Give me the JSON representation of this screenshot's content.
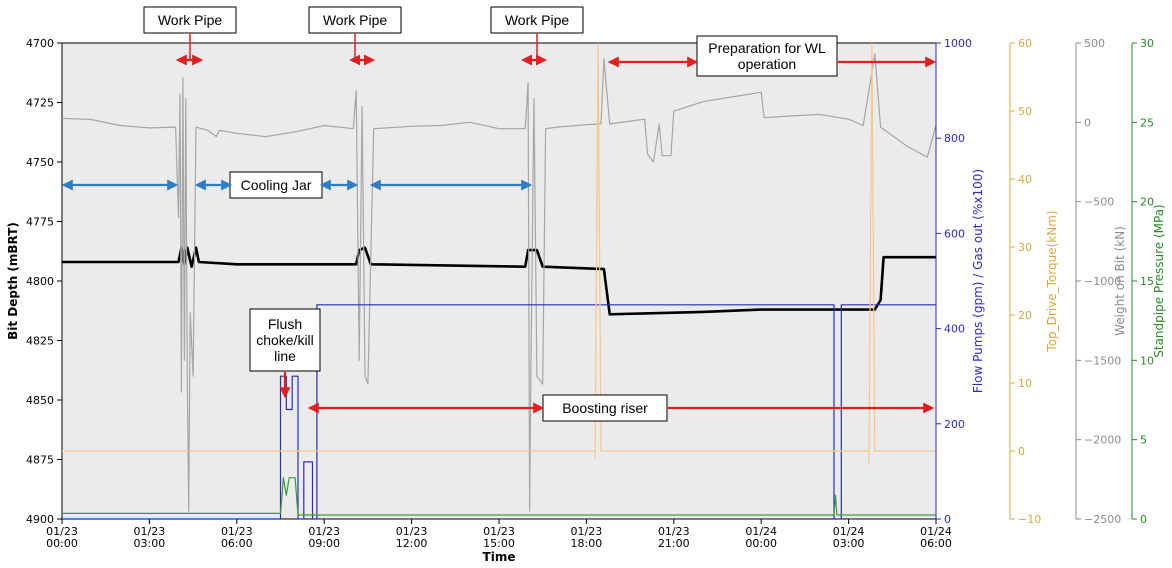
{
  "chart_data": {
    "type": "line",
    "xlabel": "Time",
    "x_range": [
      "01/23 00:00",
      "01/24 06:00"
    ],
    "x_ticks": [
      {
        "date": "01/23",
        "time": "00:00",
        "h": 0
      },
      {
        "date": "01/23",
        "time": "03:00",
        "h": 3
      },
      {
        "date": "01/23",
        "time": "06:00",
        "h": 6
      },
      {
        "date": "01/23",
        "time": "09:00",
        "h": 9
      },
      {
        "date": "01/23",
        "time": "12:00",
        "h": 12
      },
      {
        "date": "01/23",
        "time": "15:00",
        "h": 15
      },
      {
        "date": "01/23",
        "time": "18:00",
        "h": 18
      },
      {
        "date": "01/23",
        "time": "21:00",
        "h": 21
      },
      {
        "date": "01/24",
        "time": "00:00",
        "h": 24
      },
      {
        "date": "01/24",
        "time": "03:00",
        "h": 27
      },
      {
        "date": "01/24",
        "time": "06:00",
        "h": 30
      }
    ],
    "axes": [
      {
        "id": "depth",
        "label": "Bit Depth (mBRT)",
        "range": [
          4900,
          4700
        ],
        "ticks": [
          4700,
          4725,
          4750,
          4775,
          4800,
          4825,
          4850,
          4875,
          4900
        ],
        "color": "#000000"
      },
      {
        "id": "flow",
        "label": "Flow Pumps (gpm) / Gas out (%x100)",
        "range": [
          0,
          1000
        ],
        "ticks": [
          0,
          200,
          400,
          600,
          800,
          1000
        ],
        "color": "#2b2bbf"
      },
      {
        "id": "torque",
        "label": "Top_Drive_Torque(kNm)",
        "range": [
          -10,
          60
        ],
        "ticks": [
          -10,
          0,
          10,
          20,
          30,
          40,
          50,
          60
        ],
        "color": "#d9a845"
      },
      {
        "id": "wob",
        "label": "Weight on Bit (kN)",
        "range": [
          -2500,
          500
        ],
        "ticks": [
          -2500,
          -2000,
          -1500,
          -1000,
          -500,
          0,
          500
        ],
        "color": "#8c8c8c"
      },
      {
        "id": "spp",
        "label": "Standpipe Pressure (MPa)",
        "range": [
          0,
          30
        ],
        "ticks": [
          0,
          5,
          10,
          15,
          20,
          25,
          30
        ],
        "color": "#2a8a2a"
      }
    ],
    "series": [
      {
        "axis": "depth",
        "color": "#000000",
        "points": [
          [
            0,
            4792
          ],
          [
            4.0,
            4792
          ],
          [
            4.1,
            4786
          ],
          [
            4.2,
            4793
          ],
          [
            4.3,
            4786
          ],
          [
            4.45,
            4794
          ],
          [
            4.6,
            4786
          ],
          [
            4.7,
            4792
          ],
          [
            6,
            4793
          ],
          [
            10.1,
            4793
          ],
          [
            10.2,
            4787
          ],
          [
            10.4,
            4786
          ],
          [
            10.6,
            4793
          ],
          [
            15.9,
            4794
          ],
          [
            16.0,
            4787
          ],
          [
            16.3,
            4787
          ],
          [
            16.5,
            4794
          ],
          [
            18.6,
            4795
          ],
          [
            18.8,
            4814
          ],
          [
            22,
            4813
          ],
          [
            24,
            4812
          ],
          [
            27.9,
            4812
          ],
          [
            28.1,
            4808
          ],
          [
            28.2,
            4790
          ],
          [
            30,
            4790
          ]
        ]
      },
      {
        "axis": "wob",
        "color": "#a6a6a6",
        "points": [
          [
            0,
            25
          ],
          [
            1,
            18
          ],
          [
            2,
            -20
          ],
          [
            3,
            -35
          ],
          [
            3.9,
            -30
          ],
          [
            4.0,
            -600
          ],
          [
            4.05,
            180
          ],
          [
            4.1,
            -1700
          ],
          [
            4.15,
            280
          ],
          [
            4.2,
            -1500
          ],
          [
            4.25,
            150
          ],
          [
            4.3,
            -1600
          ],
          [
            4.35,
            -2450
          ],
          [
            4.4,
            -1200
          ],
          [
            4.5,
            -1600
          ],
          [
            4.6,
            -30
          ],
          [
            5,
            -50
          ],
          [
            5.3,
            -90
          ],
          [
            5.4,
            -50
          ],
          [
            6,
            -70
          ],
          [
            7,
            -90
          ],
          [
            8,
            -60
          ],
          [
            9,
            -20
          ],
          [
            10,
            -40
          ],
          [
            10.1,
            200
          ],
          [
            10.2,
            -1500
          ],
          [
            10.3,
            100
          ],
          [
            10.4,
            -1600
          ],
          [
            10.5,
            -1650
          ],
          [
            10.7,
            -40
          ],
          [
            12,
            -25
          ],
          [
            13,
            -20
          ],
          [
            14,
            0
          ],
          [
            15,
            -40
          ],
          [
            15.9,
            -40
          ],
          [
            16.0,
            250
          ],
          [
            16.05,
            -2450
          ],
          [
            16.1,
            -1500
          ],
          [
            16.2,
            150
          ],
          [
            16.3,
            -1600
          ],
          [
            16.5,
            -1650
          ],
          [
            16.6,
            -40
          ],
          [
            17,
            -30
          ],
          [
            18,
            -15
          ],
          [
            18.5,
            -10
          ],
          [
            18.6,
            400
          ],
          [
            18.8,
            -10
          ],
          [
            20,
            20
          ],
          [
            20.1,
            -200
          ],
          [
            20.3,
            -250
          ],
          [
            20.5,
            -10
          ],
          [
            20.6,
            -210
          ],
          [
            20.9,
            -210
          ],
          [
            21,
            70
          ],
          [
            22,
            130
          ],
          [
            23,
            160
          ],
          [
            24,
            190
          ],
          [
            24.1,
            30
          ],
          [
            25,
            40
          ],
          [
            26,
            50
          ],
          [
            27,
            20
          ],
          [
            27.5,
            -20
          ],
          [
            27.9,
            430
          ],
          [
            28.1,
            -30
          ],
          [
            29,
            -150
          ],
          [
            29.7,
            -220
          ],
          [
            30,
            -20
          ]
        ]
      },
      {
        "axis": "flow",
        "color": "#2b2bbf",
        "points": [
          [
            0,
            0
          ],
          [
            7.5,
            0
          ],
          [
            7.5,
            300
          ],
          [
            7.7,
            300
          ],
          [
            7.7,
            230
          ],
          [
            7.9,
            230
          ],
          [
            7.9,
            300
          ],
          [
            8.1,
            300
          ],
          [
            8.1,
            0
          ],
          [
            8.3,
            0
          ],
          [
            8.3,
            120
          ],
          [
            8.6,
            120
          ],
          [
            8.6,
            0
          ],
          [
            8.75,
            0
          ],
          [
            8.75,
            450
          ],
          [
            26.5,
            450
          ],
          [
            26.5,
            0
          ],
          [
            26.75,
            0
          ],
          [
            26.75,
            450
          ],
          [
            30,
            450
          ]
        ]
      },
      {
        "axis": "torque",
        "color": "#f5c78a",
        "points": [
          [
            0,
            0
          ],
          [
            18.3,
            0
          ],
          [
            18.3,
            -1
          ],
          [
            18.4,
            60
          ],
          [
            18.5,
            0
          ],
          [
            27.7,
            0
          ],
          [
            27.7,
            -2
          ],
          [
            27.8,
            60
          ],
          [
            27.9,
            0
          ],
          [
            30,
            0
          ]
        ]
      },
      {
        "axis": "spp",
        "color": "#3a9b3a",
        "points": [
          [
            0,
            0.35
          ],
          [
            7.5,
            0.35
          ],
          [
            7.6,
            2.6
          ],
          [
            7.7,
            1.5
          ],
          [
            7.8,
            2.6
          ],
          [
            8.0,
            2.6
          ],
          [
            8.1,
            0.25
          ],
          [
            26.5,
            0.25
          ],
          [
            26.55,
            1.5
          ],
          [
            26.6,
            0.25
          ],
          [
            30,
            0.25
          ]
        ]
      }
    ],
    "annotations": [
      {
        "text": "Work Pipe",
        "box": [
          4.3,
          4.5
        ],
        "arrow": [
          4.05,
          4.7,
          4708
        ]
      },
      {
        "text": "Work Pipe",
        "box": [
          10.3,
          4.5
        ],
        "arrow": [
          10.0,
          10.6,
          4708
        ]
      },
      {
        "text": "Work Pipe",
        "box": [
          16.2,
          4.5
        ],
        "arrow": [
          15.9,
          16.5,
          4708
        ]
      },
      {
        "text": "Cooling Jar",
        "box": [
          8.0,
          4767
        ]
      },
      {
        "text": "Flush choke/kill line",
        "box": [
          7.6,
          4820
        ]
      },
      {
        "text": "Boosting riser",
        "box": [
          19.3,
          4852
        ]
      },
      {
        "text": "Preparation for WL operation",
        "box": [
          24.1,
          4706
        ]
      }
    ]
  }
}
